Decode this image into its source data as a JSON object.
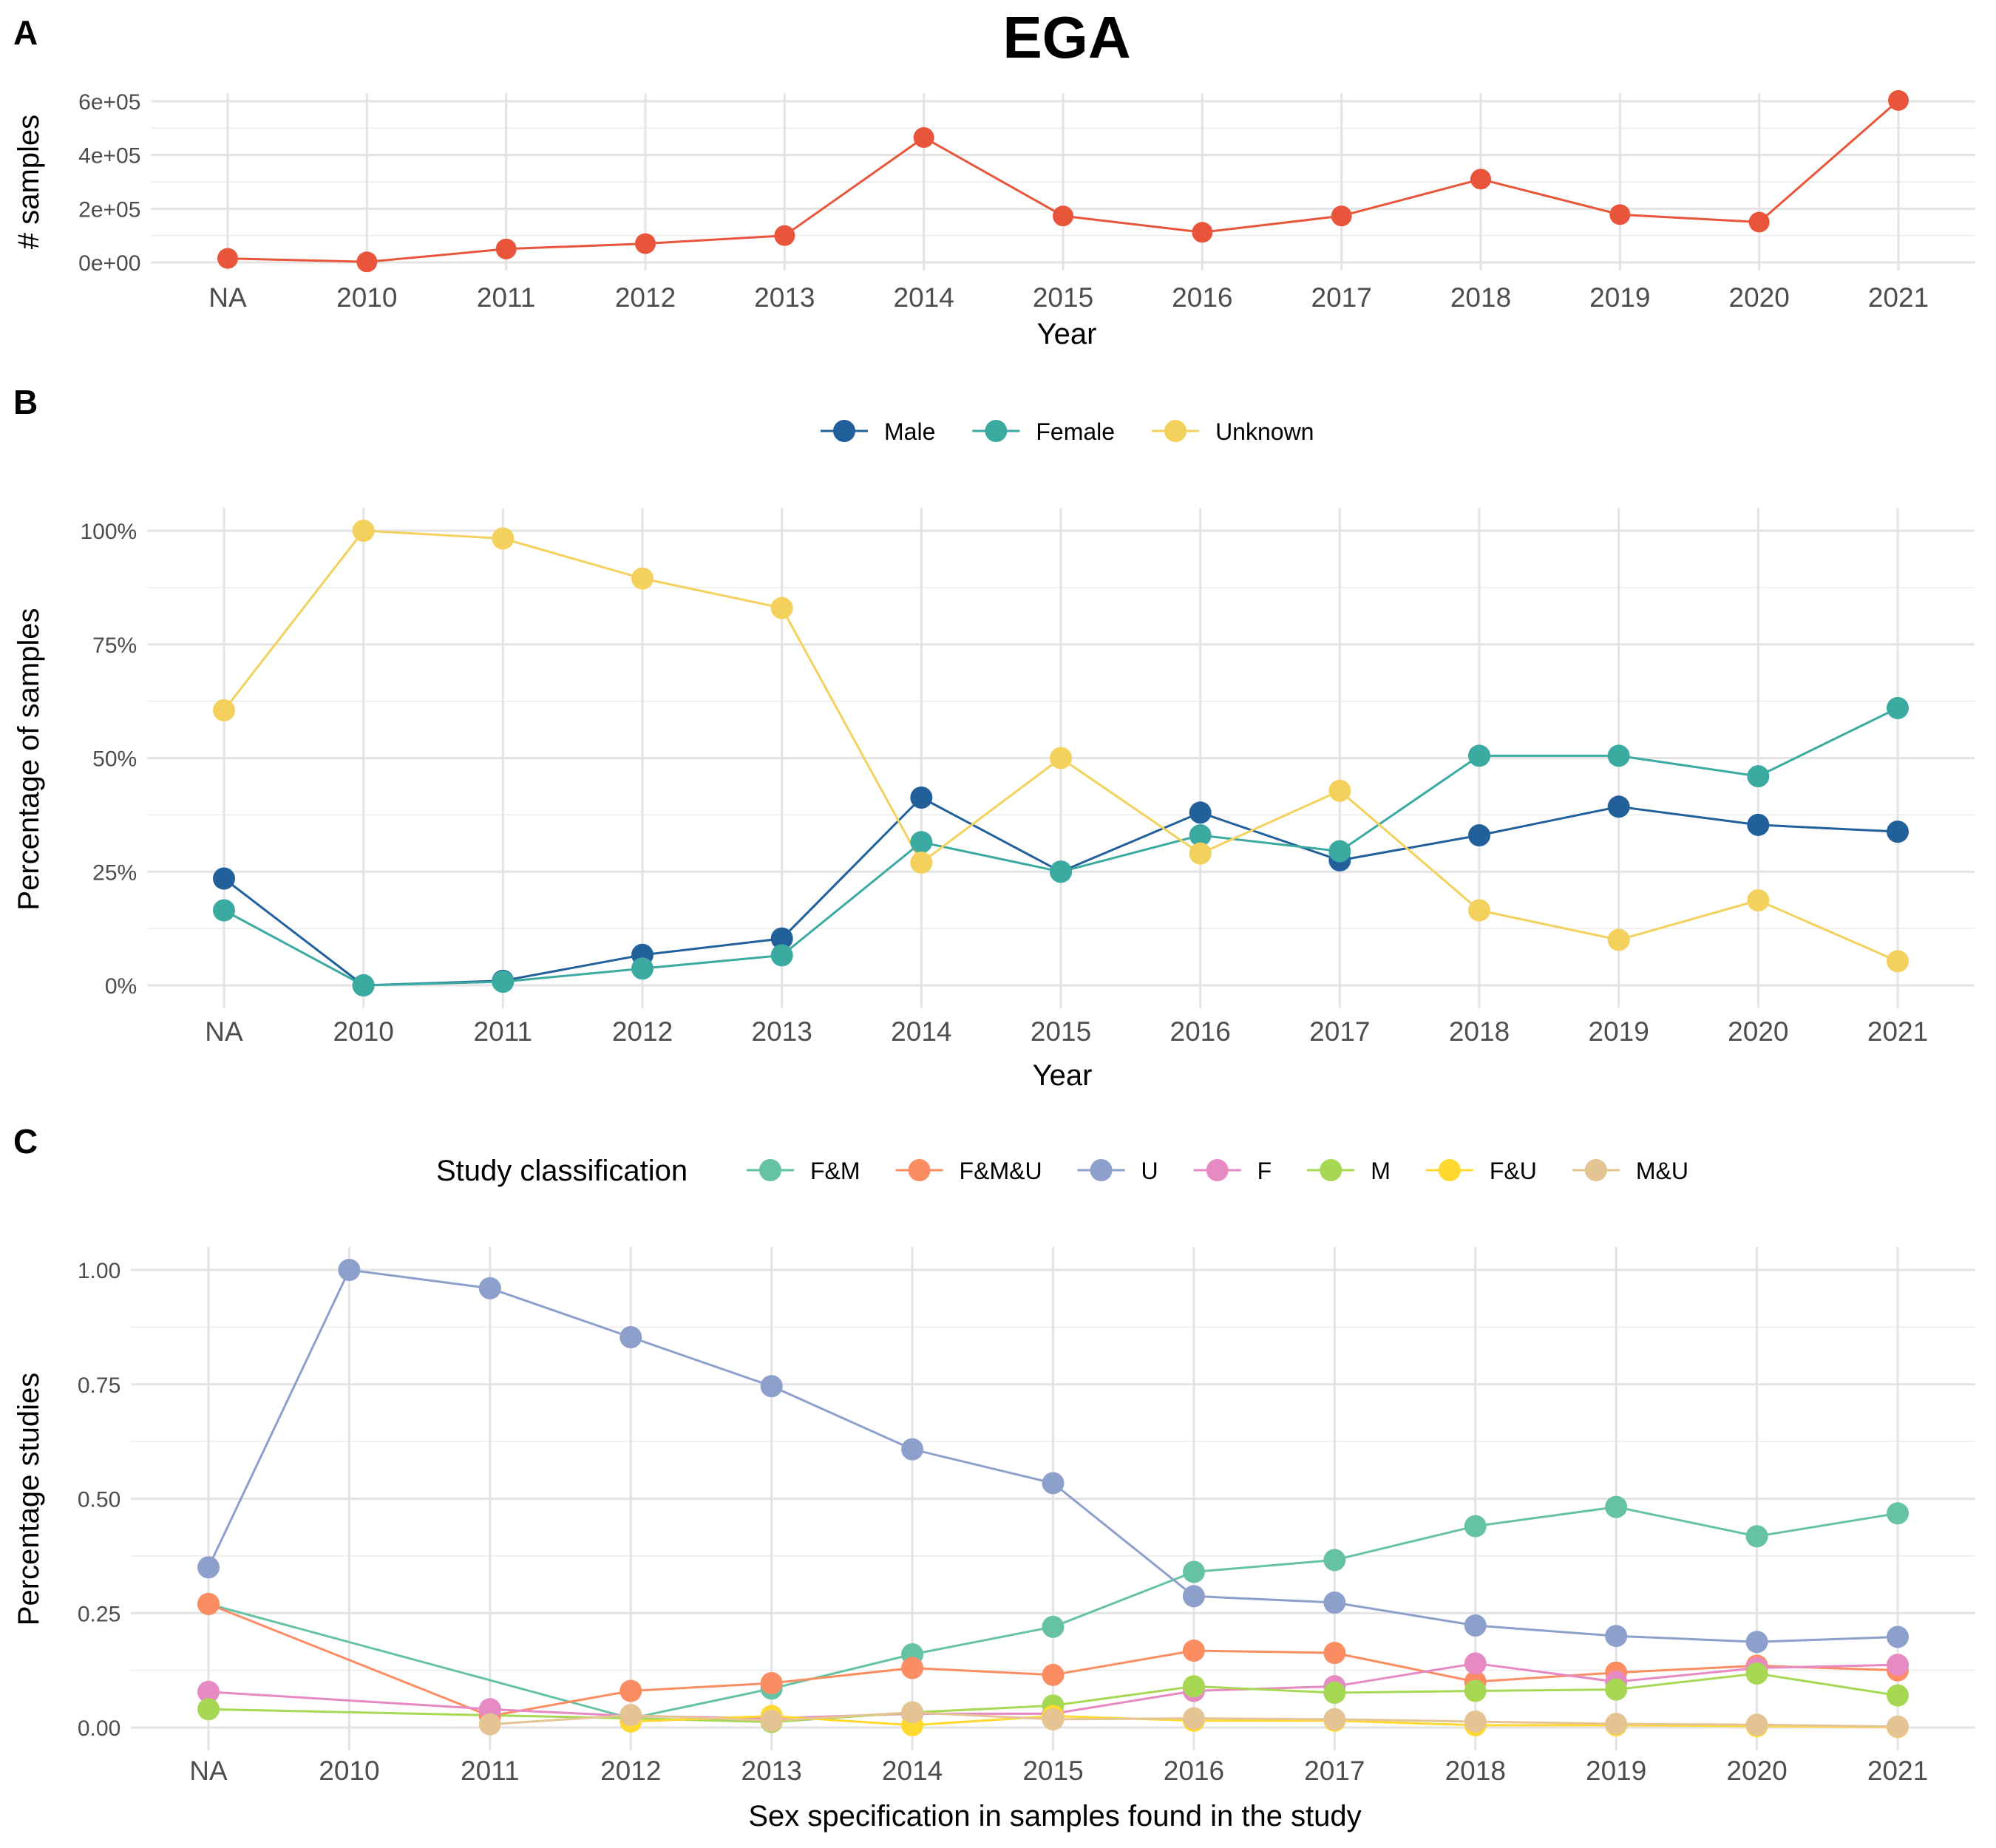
{
  "title": "EGA",
  "chart_data": [
    {
      "panel": "A",
      "type": "line",
      "categories": [
        "NA",
        "2010",
        "2011",
        "2012",
        "2013",
        "2014",
        "2015",
        "2016",
        "2017",
        "2018",
        "2019",
        "2020",
        "2021"
      ],
      "xlabel": "Year",
      "ylabel": "# samples",
      "ylim": [
        0,
        600000
      ],
      "yticks": [
        0,
        200000,
        400000,
        600000
      ],
      "ytick_labels": [
        "0e+00",
        "2e+05",
        "4e+05",
        "6e+05"
      ],
      "grid": true,
      "legend": "none",
      "series": [
        {
          "color": "#E8553A",
          "values": [
            15000,
            2000,
            50000,
            70000,
            100000,
            465000,
            173000,
            112000,
            173000,
            310000,
            178000,
            150000,
            603000
          ]
        }
      ]
    },
    {
      "panel": "B",
      "type": "line",
      "categories": [
        "NA",
        "2010",
        "2011",
        "2012",
        "2013",
        "2014",
        "2015",
        "2016",
        "2017",
        "2018",
        "2019",
        "2020",
        "2021"
      ],
      "xlabel": "Year",
      "ylabel": "Percentage of samples",
      "ylim": [
        0,
        1
      ],
      "yticks": [
        0,
        0.25,
        0.5,
        0.75,
        1
      ],
      "ytick_labels": [
        "0%",
        "25%",
        "50%",
        "75%",
        "100%"
      ],
      "grid": true,
      "legend": "top",
      "series": [
        {
          "name": "Male",
          "color": "#21609A",
          "values": [
            0.235,
            0.0,
            0.01,
            0.067,
            0.103,
            0.413,
            0.25,
            0.38,
            0.275,
            0.33,
            0.393,
            0.353,
            0.338
          ]
        },
        {
          "name": "Female",
          "color": "#3BAAA0",
          "values": [
            0.165,
            0.0,
            0.008,
            0.037,
            0.066,
            0.315,
            0.25,
            0.33,
            0.295,
            0.505,
            0.505,
            0.46,
            0.61
          ]
        },
        {
          "name": "Unknown",
          "color": "#F3D15C",
          "values": [
            0.605,
            1.0,
            0.983,
            0.895,
            0.83,
            0.27,
            0.5,
            0.29,
            0.428,
            0.165,
            0.1,
            0.187,
            0.053
          ]
        }
      ]
    },
    {
      "panel": "C",
      "type": "line",
      "categories": [
        "NA",
        "2010",
        "2011",
        "2012",
        "2013",
        "2014",
        "2015",
        "2016",
        "2017",
        "2018",
        "2019",
        "2020",
        "2021"
      ],
      "xlabel": "Sex specification in samples found in the study",
      "ylabel": "Percentage studies",
      "ylim": [
        0,
        1
      ],
      "yticks": [
        0,
        0.25,
        0.5,
        0.75,
        1
      ],
      "ytick_labels": [
        "0.00",
        "0.25",
        "0.50",
        "0.75",
        "1.00"
      ],
      "grid": true,
      "legend": "top",
      "legend_title": "Study classification",
      "series": [
        {
          "name": "F&M",
          "color": "#66C2A5",
          "values": [
            0.27,
            null,
            null,
            0.02,
            0.085,
            0.16,
            0.22,
            0.34,
            0.366,
            0.44,
            0.482,
            0.418,
            0.468
          ]
        },
        {
          "name": "F&M&U",
          "color": "#FC8D62",
          "values": [
            0.27,
            null,
            0.025,
            0.08,
            0.097,
            0.13,
            0.115,
            0.168,
            0.163,
            0.1,
            0.12,
            0.135,
            0.125
          ]
        },
        {
          "name": "U",
          "color": "#8DA0CB",
          "values": [
            0.35,
            1.0,
            0.96,
            0.853,
            0.746,
            0.608,
            0.534,
            0.287,
            0.273,
            0.223,
            0.2,
            0.187,
            0.198
          ]
        },
        {
          "name": "F",
          "color": "#E78AC3",
          "values": [
            0.078,
            null,
            0.04,
            0.025,
            0.02,
            0.03,
            0.03,
            0.08,
            0.09,
            0.14,
            0.1,
            0.13,
            0.137
          ]
        },
        {
          "name": "M",
          "color": "#A6D854",
          "values": [
            0.04,
            null,
            null,
            0.02,
            0.012,
            0.033,
            0.048,
            0.09,
            0.076,
            0.08,
            0.083,
            0.118,
            0.07
          ]
        },
        {
          "name": "F&U",
          "color": "#FFD92F",
          "values": [
            null,
            null,
            null,
            0.013,
            0.025,
            0.005,
            0.025,
            0.015,
            0.015,
            0.005,
            0.005,
            0.003,
            0.001
          ]
        },
        {
          "name": "M&U",
          "color": "#E5C494",
          "values": [
            null,
            null,
            0.007,
            0.027,
            0.015,
            0.033,
            0.018,
            0.02,
            0.018,
            0.013,
            0.008,
            0.006,
            0.002
          ]
        }
      ]
    }
  ]
}
